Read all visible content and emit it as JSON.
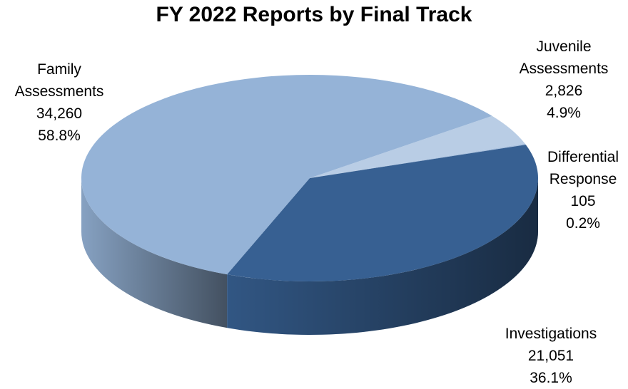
{
  "chart_data": {
    "type": "pie",
    "title": "FY 2022 Reports by Final Track",
    "categories": [
      "Juvenile Assessments",
      "Differential Response",
      "Investigations",
      "Family Assessments"
    ],
    "values": [
      2826,
      105,
      21051,
      34260
    ],
    "value_labels": [
      "2,826",
      "105",
      "21,051",
      "34,260"
    ],
    "percents": [
      4.9,
      0.2,
      36.1,
      58.8
    ],
    "percent_labels": [
      "4.9%",
      "0.2%",
      "36.1%",
      "58.8%"
    ],
    "colors": [
      "#b9cde5",
      "#a9c1df",
      "#376092",
      "#95b3d7"
    ]
  }
}
